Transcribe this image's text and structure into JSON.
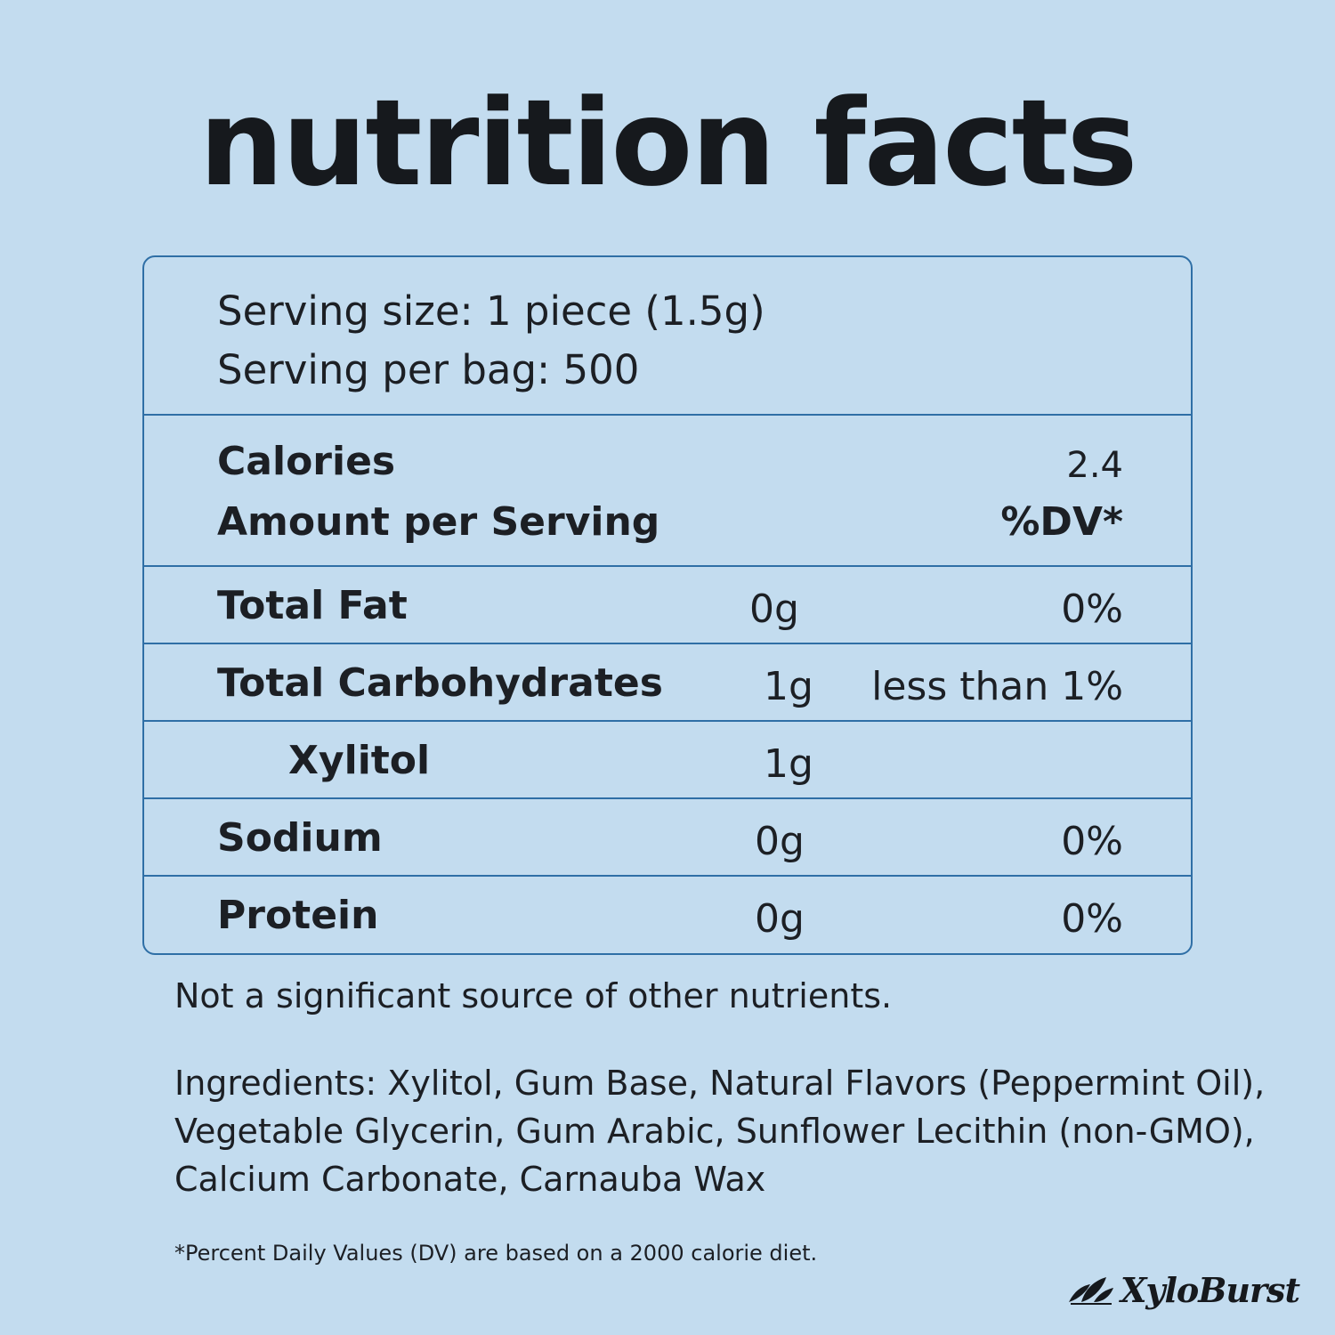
{
  "title": "nutrition facts",
  "serving": {
    "size": "Serving size: 1 piece (1.5g)",
    "per_bag": "Serving per bag: 500"
  },
  "calories": {
    "label": "Calories",
    "value": "2.4"
  },
  "header": {
    "amount_label": "Amount per Serving",
    "dv_label": "%DV*"
  },
  "nutrients": [
    {
      "label": "Total Fat",
      "amount": "0g",
      "dv": "0%"
    },
    {
      "label": "Total Carbohydrates",
      "amount": "1g",
      "dv": "less than 1%"
    },
    {
      "label": "Xylitol",
      "amount": "1g",
      "dv": ""
    },
    {
      "label": "Sodium",
      "amount": "0g",
      "dv": "0%"
    },
    {
      "label": "Protein",
      "amount": "0g",
      "dv": "0%"
    }
  ],
  "note": "Not a significant source of other nutrients.",
  "ingredients": [
    "Ingredients: Xylitol, Gum Base, Natural Flavors (Peppermint Oil),",
    "Vegetable Glycerin, Gum Arabic, Sunflower Lecithin (non-GMO),",
    "Calcium Carbonate, Carnauba Wax"
  ],
  "dv_note": "*Percent Daily Values (DV) are based on a 2000 calorie diet.",
  "brand": {
    "name": "XyloBurst",
    "icon": "leaf-icon"
  },
  "colors": {
    "background": "#c3dcef",
    "border": "#2f6fa6",
    "text": "#1c1f24"
  }
}
